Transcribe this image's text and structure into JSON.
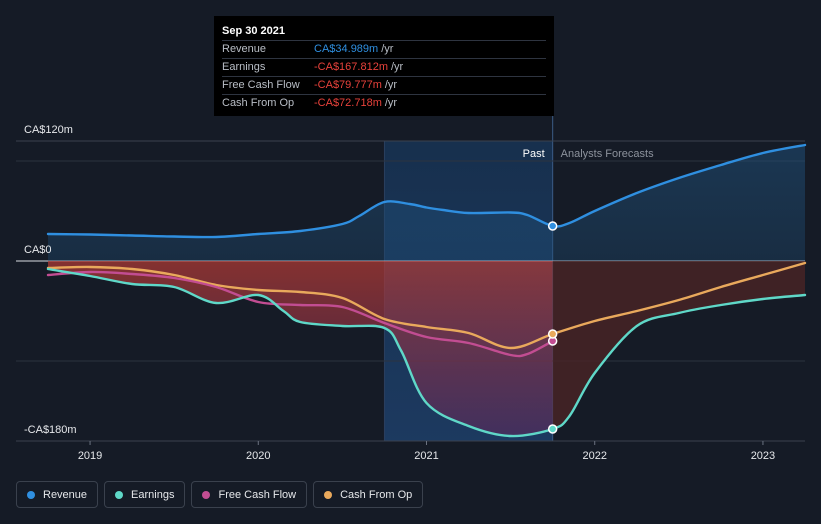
{
  "tooltip": {
    "date": "Sep 30 2021",
    "rows": [
      {
        "label": "Revenue",
        "value": "CA$34.989m",
        "unit": "/yr",
        "color": "#2f8fe0"
      },
      {
        "label": "Earnings",
        "value": "-CA$167.812m",
        "unit": "/yr",
        "color": "#e8423b"
      },
      {
        "label": "Free Cash Flow",
        "value": "-CA$79.777m",
        "unit": "/yr",
        "color": "#e8423b"
      },
      {
        "label": "Cash From Op",
        "value": "-CA$72.718m",
        "unit": "/yr",
        "color": "#e8423b"
      }
    ]
  },
  "regions": {
    "past": "Past",
    "forecast": "Analysts Forecasts"
  },
  "legend": [
    {
      "label": "Revenue",
      "color": "#2f8fe0"
    },
    {
      "label": "Earnings",
      "color": "#5fd8c8"
    },
    {
      "label": "Free Cash Flow",
      "color": "#c24d92"
    },
    {
      "label": "Cash From Op",
      "color": "#e9a95c"
    }
  ],
  "chart_data": {
    "type": "line",
    "title": "",
    "xlabel": "",
    "ylabel": "",
    "x_ticks": [
      2019,
      2020,
      2021,
      2022,
      2023
    ],
    "xlim": [
      2018.75,
      2023.25
    ],
    "ylim": [
      -180,
      120
    ],
    "y_tick_labels": [
      {
        "value": 120,
        "label": "CA$120m"
      },
      {
        "value": 0,
        "label": "CA$0"
      },
      {
        "value": -180,
        "label": "-CA$180m"
      }
    ],
    "y_gridlines": [
      100,
      0,
      -100
    ],
    "highlight_start": 2020.75,
    "past_end": 2021.75,
    "series": [
      {
        "name": "Revenue",
        "color": "#2f8fe0",
        "points": [
          [
            2018.75,
            27
          ],
          [
            2019.0,
            26.5
          ],
          [
            2019.25,
            25.5
          ],
          [
            2019.5,
            24.5
          ],
          [
            2019.75,
            24
          ],
          [
            2020.0,
            27
          ],
          [
            2020.25,
            30
          ],
          [
            2020.5,
            37
          ],
          [
            2020.6,
            45
          ],
          [
            2020.75,
            59
          ],
          [
            2020.9,
            57
          ],
          [
            2021.0,
            53.5
          ],
          [
            2021.1,
            51
          ],
          [
            2021.25,
            48
          ],
          [
            2021.5,
            48.5
          ],
          [
            2021.6,
            46
          ],
          [
            2021.75,
            35
          ],
          [
            2021.85,
            38
          ],
          [
            2022.0,
            50
          ],
          [
            2022.25,
            68
          ],
          [
            2022.5,
            83
          ],
          [
            2022.75,
            96
          ],
          [
            2023.0,
            108
          ],
          [
            2023.25,
            116
          ]
        ],
        "forecast_from": 2021.75
      },
      {
        "name": "Earnings",
        "color": "#5fd8c8",
        "points": [
          [
            2018.75,
            -8
          ],
          [
            2019.0,
            -15
          ],
          [
            2019.25,
            -23
          ],
          [
            2019.5,
            -26
          ],
          [
            2019.75,
            -42
          ],
          [
            2020.0,
            -34
          ],
          [
            2020.15,
            -50
          ],
          [
            2020.25,
            -61
          ],
          [
            2020.5,
            -65
          ],
          [
            2020.75,
            -67
          ],
          [
            2020.85,
            -90
          ],
          [
            2021.0,
            -142
          ],
          [
            2021.25,
            -165
          ],
          [
            2021.5,
            -175
          ],
          [
            2021.75,
            -168
          ],
          [
            2021.85,
            -155
          ],
          [
            2022.0,
            -112
          ],
          [
            2022.25,
            -65
          ],
          [
            2022.5,
            -52
          ],
          [
            2022.75,
            -44
          ],
          [
            2023.0,
            -38
          ],
          [
            2023.25,
            -34
          ]
        ],
        "forecast_from": 2021.75
      },
      {
        "name": "Free Cash Flow",
        "color": "#c24d92",
        "points": [
          [
            2018.75,
            -14
          ],
          [
            2019.0,
            -11
          ],
          [
            2019.25,
            -13
          ],
          [
            2019.5,
            -17
          ],
          [
            2019.75,
            -26
          ],
          [
            2020.0,
            -41
          ],
          [
            2020.25,
            -44
          ],
          [
            2020.5,
            -46
          ],
          [
            2020.75,
            -62
          ],
          [
            2021.0,
            -76
          ],
          [
            2021.25,
            -82
          ],
          [
            2021.5,
            -94
          ],
          [
            2021.6,
            -93
          ],
          [
            2021.75,
            -80
          ]
        ],
        "forecast_from": null
      },
      {
        "name": "Cash From Op",
        "color": "#e9a95c",
        "points": [
          [
            2018.75,
            -7
          ],
          [
            2019.0,
            -6
          ],
          [
            2019.25,
            -8
          ],
          [
            2019.5,
            -14
          ],
          [
            2019.75,
            -24
          ],
          [
            2020.0,
            -29
          ],
          [
            2020.25,
            -31
          ],
          [
            2020.5,
            -37
          ],
          [
            2020.75,
            -58
          ],
          [
            2021.0,
            -66
          ],
          [
            2021.25,
            -72
          ],
          [
            2021.5,
            -87
          ],
          [
            2021.75,
            -73
          ],
          [
            2022.0,
            -60
          ],
          [
            2022.25,
            -50
          ],
          [
            2022.5,
            -39
          ],
          [
            2022.75,
            -26
          ],
          [
            2023.0,
            -14
          ],
          [
            2023.25,
            -2
          ]
        ],
        "forecast_from": 2021.75
      }
    ]
  }
}
